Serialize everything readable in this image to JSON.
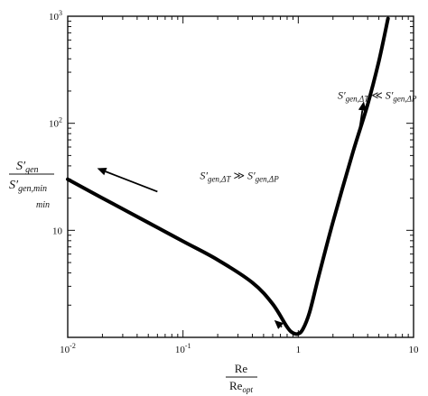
{
  "chart_data": {
    "type": "line",
    "x_scale": "log",
    "y_scale": "log",
    "xlim": [
      0.01,
      10
    ],
    "ylim": [
      1,
      1000
    ],
    "x_ticks": [
      {
        "base": "10",
        "exp": "-2",
        "value": 0.01
      },
      {
        "base": "10",
        "exp": "-1",
        "value": 0.1
      },
      {
        "base": "1",
        "exp": "",
        "value": 1
      },
      {
        "base": "10",
        "exp": "",
        "value": 10
      }
    ],
    "y_ticks": [
      {
        "base": "10",
        "exp": "",
        "value": 10
      },
      {
        "base": "10",
        "exp": "2",
        "value": 100
      },
      {
        "base": "10",
        "exp": "3",
        "value": 1000
      }
    ],
    "xlabel": {
      "numerator": "Re",
      "denominator": "Re",
      "denominator_sub": "opt"
    },
    "ylabel": {
      "numerator": "S′",
      "numerator_sub": "gen",
      "denominator": "S′",
      "denominator_sub": "gen,min",
      "extra_sub": "min"
    },
    "series": [
      {
        "x": [
          0.01,
          0.02,
          0.05,
          0.1,
          0.2,
          0.4,
          0.6,
          0.8,
          0.9,
          1.0,
          1.1,
          1.25,
          1.5,
          2.0,
          3.0,
          4.0,
          5.0,
          6.0
        ],
        "y": [
          30,
          20,
          11.8,
          7.9,
          5.3,
          3.25,
          2.05,
          1.25,
          1.1,
          1.08,
          1.2,
          1.7,
          3.7,
          12,
          55,
          150,
          380,
          950
        ],
        "color": "#000000"
      }
    ],
    "annotations": [
      {
        "id": "left",
        "main": "S′",
        "sub1": "gen,ΔT",
        "op": " ≫ ",
        "main2": "S′",
        "sub2": "gen,ΔP",
        "x": 0.14,
        "y": 30
      },
      {
        "id": "right",
        "main": "S′",
        "sub1": "gen,ΔT",
        "op": " ≪ ",
        "main2": "S′",
        "sub2": "gen,ΔP",
        "x": 2.2,
        "y": 170
      }
    ],
    "arrows": [
      {
        "id": "left-arrow",
        "from": [
          0.06,
          23
        ],
        "to": [
          0.018,
          38
        ]
      },
      {
        "id": "right-arrow",
        "from": [
          3.3,
          72
        ],
        "to": [
          3.7,
          160
        ]
      },
      {
        "id": "min-arrow",
        "from": [
          0.72,
          1.25
        ],
        "to": [
          0.62,
          1.45
        ]
      }
    ],
    "grid": false
  }
}
